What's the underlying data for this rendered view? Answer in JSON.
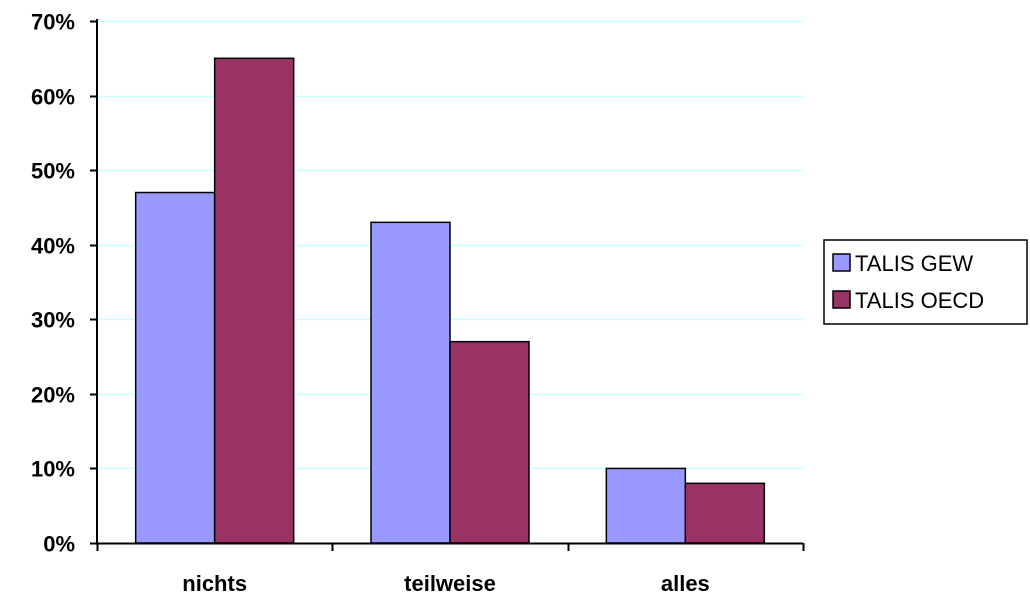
{
  "chart_data": {
    "type": "bar",
    "title": "",
    "xlabel": "",
    "ylabel": "",
    "categories": [
      "nichts",
      "teilweise",
      "alles"
    ],
    "series": [
      {
        "name": "TALIS GEW",
        "values": [
          47,
          43,
          10
        ],
        "color": "#9999ff"
      },
      {
        "name": "TALIS OECD",
        "values": [
          65,
          27,
          8
        ],
        "color": "#993366"
      }
    ],
    "ylim": [
      0,
      70
    ],
    "yticks": [
      0,
      10,
      20,
      30,
      40,
      50,
      60,
      70
    ],
    "ytick_labels": [
      "0%",
      "10%",
      "20%",
      "30%",
      "40%",
      "50%",
      "60%",
      "70%"
    ],
    "grid": true,
    "grid_color": "#ccffff",
    "legend_position": "right"
  }
}
